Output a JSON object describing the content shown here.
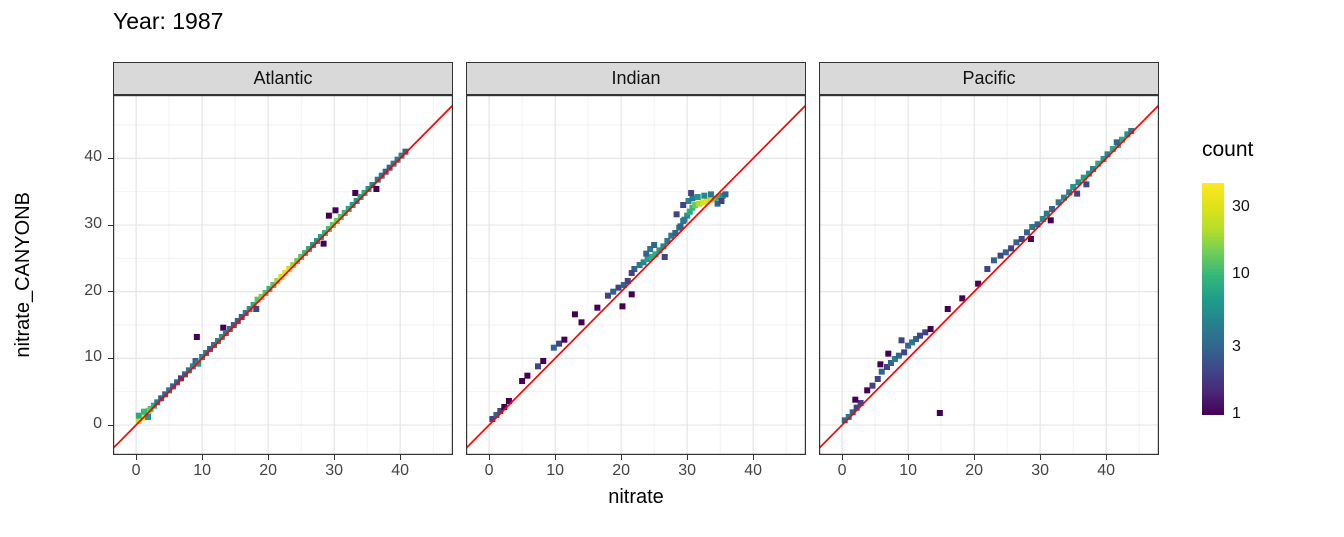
{
  "chart_data": {
    "type": "heatmap",
    "subtype": "faceted 2D bin count (geom_bin2d) with identity line",
    "title": "Year: 1987",
    "xlabel": "nitrate",
    "ylabel": "nitrate_CANYONB",
    "axes": {
      "x_ticks": [
        0,
        10,
        20,
        30,
        40
      ],
      "y_ticks": [
        0,
        10,
        20,
        30,
        40
      ],
      "minor_ticks": [
        5,
        15,
        25,
        35,
        45
      ],
      "x_domain": [
        -3.5,
        48
      ],
      "y_domain": [
        -4.5,
        49.5
      ],
      "grid": "on"
    },
    "legend": {
      "title": "count",
      "ticks": [
        1,
        3,
        10,
        30
      ],
      "bar_max": 45,
      "scale": "log",
      "position": "right",
      "palette": "viridis"
    },
    "identity_line": {
      "slope": 1,
      "intercept": 0,
      "color": "#ff0000"
    },
    "colors": {
      "strip_bg": "#d9d9d9",
      "panel_border": "#333333",
      "grid_major": "#e3e3e3",
      "grid_minor": "#f1f1f1",
      "tick_text": "#444444",
      "identity_line": "#ff0000"
    },
    "bins_format": [
      "x",
      "y",
      "count"
    ],
    "facets": [
      {
        "label": "Atlantic",
        "bins": [
          [
            0.4,
            0.6,
            25
          ],
          [
            0.9,
            1.1,
            35
          ],
          [
            1.4,
            1.6,
            30
          ],
          [
            1.9,
            2.1,
            18
          ],
          [
            0.4,
            1.4,
            8
          ],
          [
            1.2,
            2.0,
            10
          ],
          [
            2.2,
            2.4,
            12
          ],
          [
            2.7,
            2.9,
            8
          ],
          [
            1.8,
            1.2,
            6
          ],
          [
            3.2,
            3.4,
            4
          ],
          [
            3.8,
            4.0,
            3
          ],
          [
            4.4,
            4.6,
            3
          ],
          [
            5.0,
            5.2,
            4
          ],
          [
            5.6,
            5.8,
            3
          ],
          [
            6.2,
            6.4,
            3
          ],
          [
            6.8,
            7.0,
            2
          ],
          [
            7.4,
            7.6,
            3
          ],
          [
            8.0,
            8.2,
            4
          ],
          [
            8.6,
            8.8,
            5
          ],
          [
            9.0,
            9.6,
            3
          ],
          [
            9.4,
            9.2,
            6
          ],
          [
            9.2,
            13.2,
            1
          ],
          [
            10.0,
            10.2,
            5
          ],
          [
            10.6,
            10.8,
            4
          ],
          [
            11.2,
            11.4,
            3
          ],
          [
            11.8,
            12.0,
            4
          ],
          [
            12.4,
            12.6,
            5
          ],
          [
            13.0,
            13.2,
            6
          ],
          [
            13.2,
            14.6,
            1
          ],
          [
            13.6,
            13.8,
            4
          ],
          [
            14.2,
            14.4,
            4
          ],
          [
            14.8,
            15.0,
            3
          ],
          [
            15.4,
            15.6,
            3
          ],
          [
            16.0,
            16.2,
            3
          ],
          [
            16.6,
            16.8,
            4
          ],
          [
            17.2,
            17.4,
            6
          ],
          [
            17.8,
            18.0,
            8
          ],
          [
            18.2,
            17.4,
            2
          ],
          [
            18.4,
            18.8,
            12
          ],
          [
            19.0,
            19.2,
            15
          ],
          [
            19.6,
            19.8,
            12
          ],
          [
            20.2,
            20.4,
            10
          ],
          [
            20.8,
            21.0,
            12
          ],
          [
            21.4,
            21.6,
            18
          ],
          [
            22.0,
            22.2,
            25
          ],
          [
            22.6,
            22.8,
            30
          ],
          [
            23.2,
            23.4,
            25
          ],
          [
            23.8,
            24.0,
            18
          ],
          [
            24.4,
            24.6,
            14
          ],
          [
            25.0,
            25.2,
            12
          ],
          [
            25.6,
            25.8,
            10
          ],
          [
            26.2,
            26.4,
            8
          ],
          [
            26.8,
            27.0,
            6
          ],
          [
            27.4,
            27.6,
            6
          ],
          [
            28.0,
            28.2,
            7
          ],
          [
            28.4,
            27.2,
            1
          ],
          [
            28.6,
            28.8,
            9
          ],
          [
            29.2,
            29.4,
            11
          ],
          [
            29.2,
            31.4,
            1
          ],
          [
            29.8,
            30.0,
            13
          ],
          [
            30.2,
            32.2,
            1
          ],
          [
            30.4,
            30.6,
            14
          ],
          [
            31.0,
            31.2,
            12
          ],
          [
            31.6,
            31.8,
            10
          ],
          [
            32.2,
            32.4,
            8
          ],
          [
            32.8,
            33.0,
            7
          ],
          [
            33.2,
            34.8,
            1
          ],
          [
            33.4,
            33.6,
            6
          ],
          [
            34.0,
            34.2,
            7
          ],
          [
            34.6,
            34.8,
            8
          ],
          [
            35.2,
            35.4,
            6
          ],
          [
            35.8,
            36.0,
            5
          ],
          [
            36.4,
            35.4,
            1
          ],
          [
            36.6,
            36.8,
            4
          ],
          [
            37.2,
            37.4,
            4
          ],
          [
            37.8,
            38.0,
            3
          ],
          [
            38.4,
            38.6,
            3
          ],
          [
            39.0,
            39.2,
            4
          ],
          [
            39.6,
            39.8,
            4
          ],
          [
            40.2,
            40.4,
            5
          ],
          [
            40.8,
            41.0,
            3
          ]
        ]
      },
      {
        "label": "Indian",
        "bins": [
          [
            0.5,
            0.9,
            2
          ],
          [
            1.1,
            1.5,
            3
          ],
          [
            1.7,
            2.1,
            2
          ],
          [
            2.3,
            2.7,
            1
          ],
          [
            3.0,
            3.6,
            1
          ],
          [
            5.0,
            6.6,
            1
          ],
          [
            5.8,
            7.4,
            1
          ],
          [
            7.4,
            8.8,
            2
          ],
          [
            8.2,
            9.6,
            1
          ],
          [
            9.8,
            11.6,
            3
          ],
          [
            10.6,
            12.2,
            2
          ],
          [
            11.4,
            12.8,
            1
          ],
          [
            13.0,
            16.6,
            1
          ],
          [
            14.0,
            15.4,
            1
          ],
          [
            16.4,
            17.6,
            1
          ],
          [
            18.0,
            19.4,
            2
          ],
          [
            18.8,
            20.0,
            3
          ],
          [
            19.6,
            20.6,
            2
          ],
          [
            20.2,
            17.8,
            1
          ],
          [
            20.4,
            21.0,
            3
          ],
          [
            21.0,
            21.6,
            2
          ],
          [
            21.6,
            19.6,
            1
          ],
          [
            22.0,
            23.4,
            3
          ],
          [
            22.8,
            24.0,
            4
          ],
          [
            23.4,
            24.4,
            5
          ],
          [
            24.0,
            24.9,
            7
          ],
          [
            24.6,
            25.2,
            9
          ],
          [
            25.2,
            25.6,
            8
          ],
          [
            24.4,
            26.4,
            4
          ],
          [
            25.0,
            27.0,
            3
          ],
          [
            25.8,
            26.2,
            6
          ],
          [
            26.4,
            26.8,
            5
          ],
          [
            23.8,
            25.7,
            3
          ],
          [
            27.0,
            27.6,
            4
          ],
          [
            27.6,
            28.4,
            4
          ],
          [
            28.2,
            28.8,
            3
          ],
          [
            28.8,
            29.6,
            4
          ],
          [
            29.4,
            30.6,
            4
          ],
          [
            30.0,
            31.4,
            6
          ],
          [
            30.4,
            32.0,
            8
          ],
          [
            30.8,
            32.6,
            10
          ],
          [
            31.2,
            33.0,
            14
          ],
          [
            31.8,
            33.2,
            20
          ],
          [
            32.4,
            33.4,
            28
          ],
          [
            33.0,
            33.6,
            30
          ],
          [
            33.6,
            33.8,
            22
          ],
          [
            34.2,
            34.0,
            14
          ],
          [
            34.8,
            34.2,
            9
          ],
          [
            35.4,
            34.4,
            6
          ],
          [
            30.2,
            33.6,
            5
          ],
          [
            30.8,
            34.0,
            4
          ],
          [
            31.6,
            34.2,
            6
          ],
          [
            32.6,
            34.4,
            5
          ],
          [
            33.6,
            34.6,
            4
          ],
          [
            29.6,
            30.8,
            4
          ],
          [
            29.0,
            29.8,
            3
          ],
          [
            28.4,
            31.6,
            2
          ],
          [
            30.6,
            34.8,
            2
          ],
          [
            29.4,
            33.0,
            2
          ],
          [
            34.6,
            33.2,
            3
          ],
          [
            35.2,
            33.6,
            2
          ],
          [
            26.6,
            25.2,
            2
          ],
          [
            21.6,
            22.8,
            2
          ],
          [
            35.8,
            34.6,
            3
          ]
        ]
      },
      {
        "label": "Pacific",
        "bins": [
          [
            0.4,
            0.7,
            3
          ],
          [
            1.0,
            1.2,
            4
          ],
          [
            1.6,
            1.9,
            3
          ],
          [
            2.2,
            2.6,
            2
          ],
          [
            2.8,
            3.3,
            2
          ],
          [
            2.0,
            3.8,
            1
          ],
          [
            3.8,
            5.2,
            1
          ],
          [
            4.6,
            5.9,
            2
          ],
          [
            5.4,
            6.9,
            2
          ],
          [
            6.0,
            8.0,
            3
          ],
          [
            6.8,
            8.7,
            2
          ],
          [
            7.4,
            9.3,
            3
          ],
          [
            8.0,
            9.9,
            4
          ],
          [
            8.6,
            10.4,
            3
          ],
          [
            9.4,
            10.9,
            2
          ],
          [
            10.0,
            11.9,
            3
          ],
          [
            10.6,
            12.4,
            4
          ],
          [
            11.2,
            12.9,
            3
          ],
          [
            7.0,
            10.7,
            1
          ],
          [
            5.8,
            9.1,
            1
          ],
          [
            9.0,
            12.7,
            2
          ],
          [
            11.8,
            13.4,
            2
          ],
          [
            12.6,
            13.9,
            2
          ],
          [
            14.8,
            1.8,
            1
          ],
          [
            13.4,
            14.4,
            1
          ],
          [
            16.0,
            17.4,
            1
          ],
          [
            18.2,
            19.0,
            1
          ],
          [
            20.6,
            21.2,
            1
          ],
          [
            22.0,
            23.4,
            2
          ],
          [
            23.0,
            24.7,
            3
          ],
          [
            24.0,
            25.4,
            2
          ],
          [
            24.8,
            25.9,
            3
          ],
          [
            25.6,
            26.5,
            2
          ],
          [
            26.4,
            27.4,
            3
          ],
          [
            27.2,
            27.9,
            2
          ],
          [
            28.0,
            28.9,
            3
          ],
          [
            28.8,
            29.7,
            4
          ],
          [
            29.6,
            30.1,
            3
          ],
          [
            30.4,
            30.9,
            5
          ],
          [
            31.0,
            31.7,
            4
          ],
          [
            31.8,
            32.4,
            3
          ],
          [
            32.8,
            33.4,
            4
          ],
          [
            33.6,
            34.1,
            5
          ],
          [
            34.4,
            34.9,
            4
          ],
          [
            35.0,
            35.7,
            6
          ],
          [
            35.8,
            36.4,
            5
          ],
          [
            36.6,
            37.1,
            7
          ],
          [
            37.4,
            37.7,
            6
          ],
          [
            38.0,
            38.4,
            5
          ],
          [
            38.8,
            39.2,
            8
          ],
          [
            39.6,
            39.9,
            6
          ],
          [
            40.2,
            40.6,
            5
          ],
          [
            41.0,
            41.4,
            8
          ],
          [
            41.8,
            42.0,
            10
          ],
          [
            42.4,
            42.8,
            8
          ],
          [
            43.2,
            43.6,
            6
          ],
          [
            43.8,
            44.1,
            4
          ],
          [
            35.6,
            34.7,
            2
          ],
          [
            37.0,
            36.1,
            2
          ],
          [
            41.6,
            42.4,
            3
          ],
          [
            28.6,
            27.9,
            1
          ],
          [
            31.6,
            30.7,
            1
          ]
        ]
      }
    ]
  }
}
